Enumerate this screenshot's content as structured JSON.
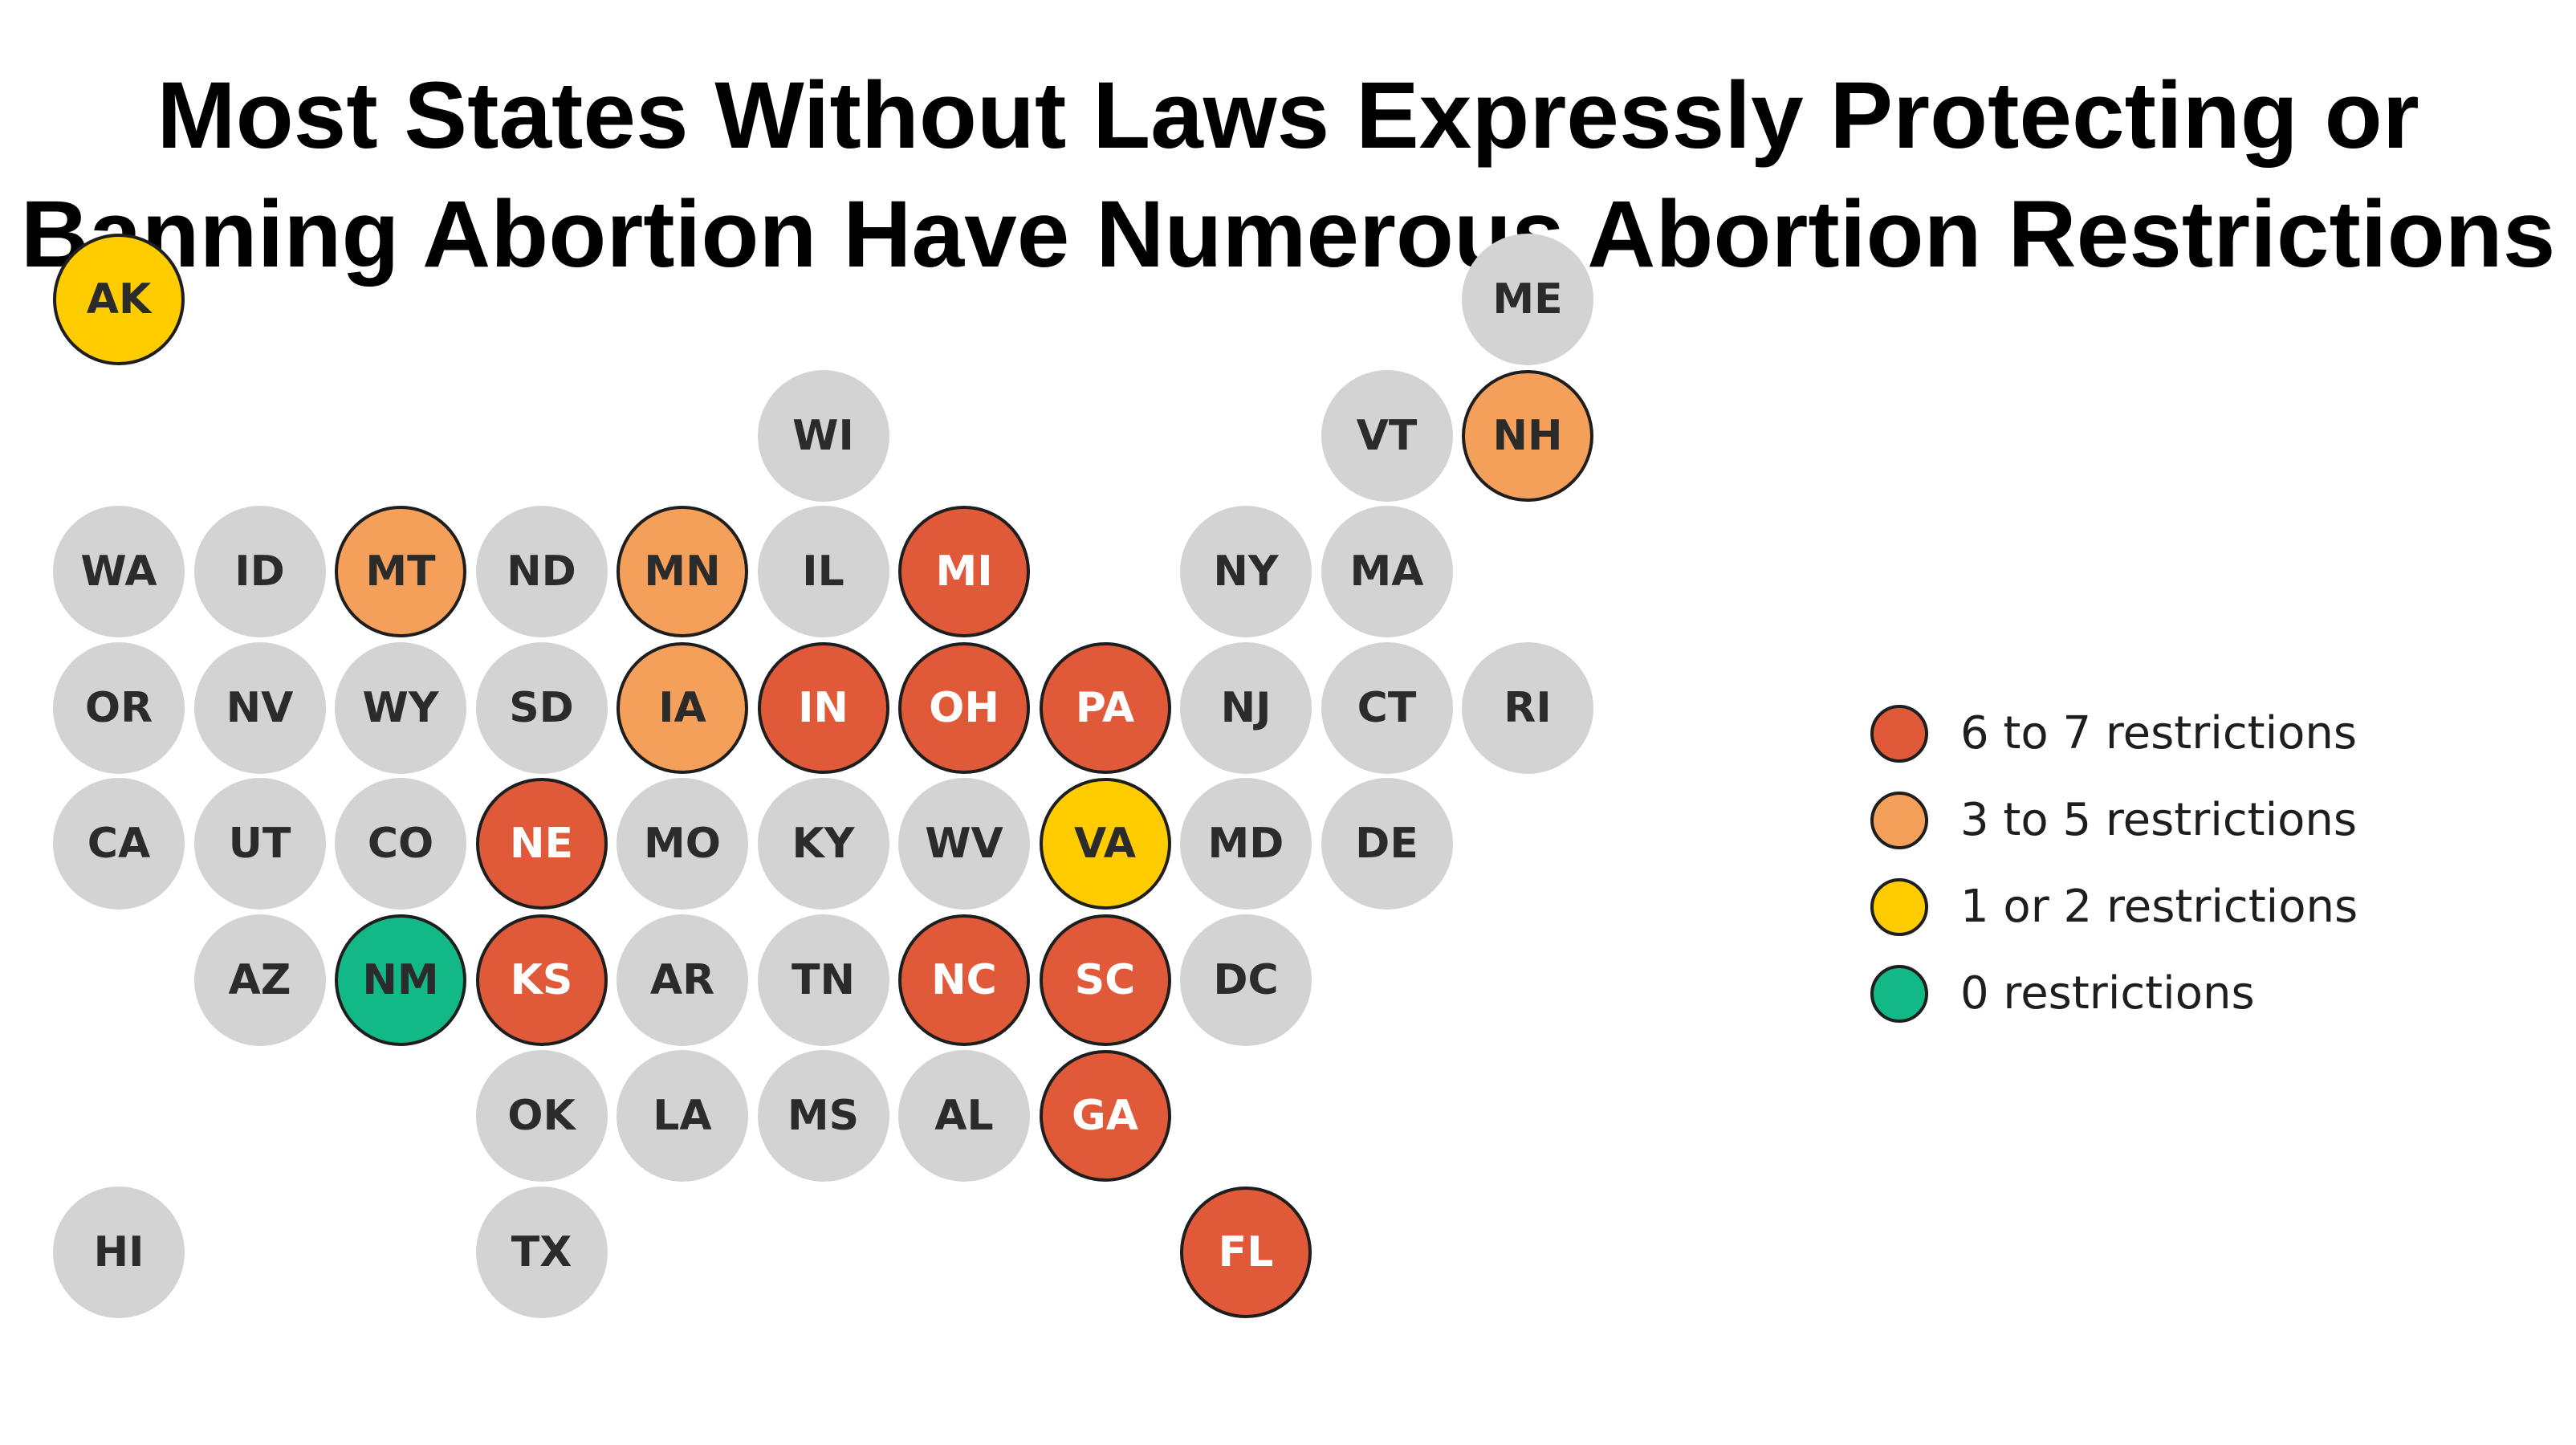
{
  "title": {
    "line1": "Most States Without Laws Expressly Protecting or",
    "line2": "Banning Abortion Have Numerous Abortion Restrictions"
  },
  "colors": {
    "six_to_seven": "#E05A3A",
    "three_to_five": "#F5A05A",
    "one_or_two": "#FFCC00",
    "zero": "#12B886",
    "none": "#D3D3D3"
  },
  "legend": [
    {
      "label": "6 to 7 restrictions",
      "category": "six_to_seven"
    },
    {
      "label": "3 to 5 restrictions",
      "category": "three_to_five"
    },
    {
      "label": "1 or 2 restrictions",
      "category": "one_or_two"
    },
    {
      "label": "0 restrictions",
      "category": "zero"
    }
  ],
  "states": [
    {
      "code": "AK",
      "row": 0,
      "col": 0,
      "category": "one_or_two"
    },
    {
      "code": "ME",
      "row": 0,
      "col": 10,
      "category": "none"
    },
    {
      "code": "WI",
      "row": 1,
      "col": 5,
      "category": "none"
    },
    {
      "code": "VT",
      "row": 1,
      "col": 9,
      "category": "none"
    },
    {
      "code": "NH",
      "row": 1,
      "col": 10,
      "category": "three_to_five"
    },
    {
      "code": "WA",
      "row": 2,
      "col": 0,
      "category": "none"
    },
    {
      "code": "ID",
      "row": 2,
      "col": 1,
      "category": "none"
    },
    {
      "code": "MT",
      "row": 2,
      "col": 2,
      "category": "three_to_five"
    },
    {
      "code": "ND",
      "row": 2,
      "col": 3,
      "category": "none"
    },
    {
      "code": "MN",
      "row": 2,
      "col": 4,
      "category": "three_to_five"
    },
    {
      "code": "IL",
      "row": 2,
      "col": 5,
      "category": "none"
    },
    {
      "code": "MI",
      "row": 2,
      "col": 6,
      "category": "six_to_seven"
    },
    {
      "code": "NY",
      "row": 2,
      "col": 8,
      "category": "none"
    },
    {
      "code": "MA",
      "row": 2,
      "col": 9,
      "category": "none"
    },
    {
      "code": "OR",
      "row": 3,
      "col": 0,
      "category": "none"
    },
    {
      "code": "NV",
      "row": 3,
      "col": 1,
      "category": "none"
    },
    {
      "code": "WY",
      "row": 3,
      "col": 2,
      "category": "none"
    },
    {
      "code": "SD",
      "row": 3,
      "col": 3,
      "category": "none"
    },
    {
      "code": "IA",
      "row": 3,
      "col": 4,
      "category": "three_to_five"
    },
    {
      "code": "IN",
      "row": 3,
      "col": 5,
      "category": "six_to_seven"
    },
    {
      "code": "OH",
      "row": 3,
      "col": 6,
      "category": "six_to_seven"
    },
    {
      "code": "PA",
      "row": 3,
      "col": 7,
      "category": "six_to_seven"
    },
    {
      "code": "NJ",
      "row": 3,
      "col": 8,
      "category": "none"
    },
    {
      "code": "CT",
      "row": 3,
      "col": 9,
      "category": "none"
    },
    {
      "code": "RI",
      "row": 3,
      "col": 10,
      "category": "none"
    },
    {
      "code": "CA",
      "row": 4,
      "col": 0,
      "category": "none"
    },
    {
      "code": "UT",
      "row": 4,
      "col": 1,
      "category": "none"
    },
    {
      "code": "CO",
      "row": 4,
      "col": 2,
      "category": "none"
    },
    {
      "code": "NE",
      "row": 4,
      "col": 3,
      "category": "six_to_seven"
    },
    {
      "code": "MO",
      "row": 4,
      "col": 4,
      "category": "none"
    },
    {
      "code": "KY",
      "row": 4,
      "col": 5,
      "category": "none"
    },
    {
      "code": "WV",
      "row": 4,
      "col": 6,
      "category": "none"
    },
    {
      "code": "VA",
      "row": 4,
      "col": 7,
      "category": "one_or_two"
    },
    {
      "code": "MD",
      "row": 4,
      "col": 8,
      "category": "none"
    },
    {
      "code": "DE",
      "row": 4,
      "col": 9,
      "category": "none"
    },
    {
      "code": "AZ",
      "row": 5,
      "col": 1,
      "category": "none"
    },
    {
      "code": "NM",
      "row": 5,
      "col": 2,
      "category": "zero"
    },
    {
      "code": "KS",
      "row": 5,
      "col": 3,
      "category": "six_to_seven"
    },
    {
      "code": "AR",
      "row": 5,
      "col": 4,
      "category": "none"
    },
    {
      "code": "TN",
      "row": 5,
      "col": 5,
      "category": "none"
    },
    {
      "code": "NC",
      "row": 5,
      "col": 6,
      "category": "six_to_seven"
    },
    {
      "code": "SC",
      "row": 5,
      "col": 7,
      "category": "six_to_seven"
    },
    {
      "code": "DC",
      "row": 5,
      "col": 8,
      "category": "none"
    },
    {
      "code": "OK",
      "row": 6,
      "col": 3,
      "category": "none"
    },
    {
      "code": "LA",
      "row": 6,
      "col": 4,
      "category": "none"
    },
    {
      "code": "MS",
      "row": 6,
      "col": 5,
      "category": "none"
    },
    {
      "code": "AL",
      "row": 6,
      "col": 6,
      "category": "none"
    },
    {
      "code": "GA",
      "row": 6,
      "col": 7,
      "category": "six_to_seven"
    },
    {
      "code": "HI",
      "row": 7,
      "col": 0,
      "category": "none"
    },
    {
      "code": "TX",
      "row": 7,
      "col": 3,
      "category": "none"
    },
    {
      "code": "FL",
      "row": 7,
      "col": 8,
      "category": "six_to_seven"
    }
  ]
}
